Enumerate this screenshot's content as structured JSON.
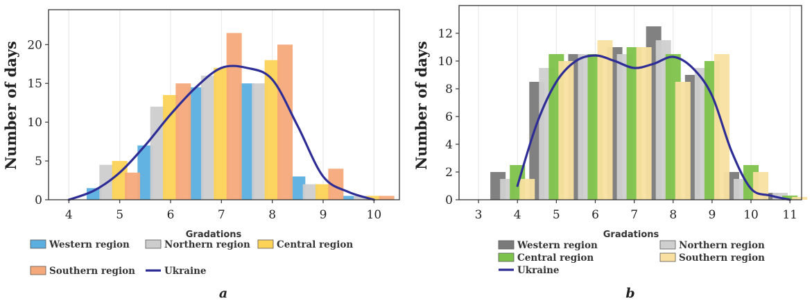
{
  "chart_data": [
    {
      "type": "bar",
      "panel_label": "a",
      "xlabel": "Gradations",
      "ylabel": "Number of days",
      "xlim": [
        3.6,
        10.5
      ],
      "ylim": [
        0,
        24.5
      ],
      "xticks": [
        4,
        5,
        6,
        7,
        8,
        9,
        10
      ],
      "yticks": [
        0,
        5,
        10,
        15,
        20
      ],
      "grid": "vertical",
      "legend_placement": "bottom",
      "series": [
        {
          "name": "Western region",
          "color": "#5aaee0",
          "bars": [
            [
              4.5,
              1.5
            ],
            [
              5.5,
              7.0
            ],
            [
              6.5,
              14.5
            ],
            [
              7.5,
              15.0
            ],
            [
              8.5,
              3.0
            ],
            [
              9.5,
              0.5
            ]
          ]
        },
        {
          "name": "Northern region",
          "color": "#cdcdcd",
          "bars": [
            [
              4.75,
              4.5
            ],
            [
              5.75,
              12.0
            ],
            [
              6.75,
              16.0
            ],
            [
              7.75,
              15.0
            ],
            [
              8.75,
              2.0
            ],
            [
              9.75,
              0.5
            ]
          ]
        },
        {
          "name": "Central region",
          "color": "#fcd257",
          "bars": [
            [
              5.0,
              5.0
            ],
            [
              6.0,
              13.5
            ],
            [
              7.0,
              17.0
            ],
            [
              8.0,
              18.0
            ],
            [
              9.0,
              2.0
            ],
            [
              10.0,
              0.5
            ]
          ]
        },
        {
          "name": "Southern region",
          "color": "#f5a97a",
          "bars": [
            [
              5.25,
              3.5
            ],
            [
              6.25,
              15.0
            ],
            [
              7.25,
              21.5
            ],
            [
              8.25,
              20.0
            ],
            [
              9.25,
              4.0
            ],
            [
              10.25,
              0.5
            ]
          ]
        }
      ],
      "line": {
        "name": "Ukraine",
        "color": "#2e2d96",
        "x": [
          4.0,
          4.5,
          5.0,
          5.5,
          6.0,
          6.5,
          7.0,
          7.5,
          8.0,
          8.5,
          9.0,
          9.5,
          10.0
        ],
        "y": [
          0.0,
          1.2,
          3.5,
          7.0,
          11.0,
          14.5,
          17.0,
          17.0,
          15.5,
          9.5,
          3.0,
          1.0,
          0.0
        ]
      },
      "legend": [
        "Western region",
        "Northern region",
        "Central region",
        "Southern region",
        "Ukraine"
      ]
    },
    {
      "type": "bar",
      "panel_label": "b",
      "xlabel": "Gradations",
      "ylabel": "Number of days",
      "xlim": [
        2.5,
        11.3
      ],
      "ylim": [
        0,
        14
      ],
      "xticks": [
        3,
        4,
        5,
        6,
        7,
        8,
        9,
        10,
        11
      ],
      "yticks": [
        0,
        2,
        4,
        6,
        8,
        10,
        12
      ],
      "grid": "vertical",
      "legend_placement": "bottom",
      "series": [
        {
          "name": "Western region",
          "color": "#7a7a7a",
          "bars": [
            [
              3.5,
              2.0
            ],
            [
              4.5,
              8.5
            ],
            [
              5.5,
              10.5
            ],
            [
              6.5,
              11.0
            ],
            [
              7.5,
              12.5
            ],
            [
              8.5,
              9.0
            ],
            [
              9.5,
              2.0
            ],
            [
              10.5,
              0.5
            ]
          ]
        },
        {
          "name": "Northern region",
          "color": "#cfcfcf",
          "bars": [
            [
              3.75,
              1.5
            ],
            [
              4.75,
              9.5
            ],
            [
              5.75,
              10.5
            ],
            [
              6.75,
              10.5
            ],
            [
              7.75,
              11.5
            ],
            [
              8.75,
              9.5
            ],
            [
              9.75,
              1.5
            ],
            [
              10.75,
              0.5
            ]
          ]
        },
        {
          "name": "Central region",
          "color": "#7dc24b",
          "bars": [
            [
              4.0,
              2.5
            ],
            [
              5.0,
              10.5
            ],
            [
              6.0,
              10.5
            ],
            [
              7.0,
              11.0
            ],
            [
              8.0,
              10.5
            ],
            [
              9.0,
              10.0
            ],
            [
              10.0,
              2.5
            ],
            [
              11.0,
              0.3
            ]
          ]
        },
        {
          "name": "Southern region",
          "color": "#f9e0a0",
          "bars": [
            [
              4.25,
              1.5
            ],
            [
              5.25,
              10.0
            ],
            [
              6.25,
              11.5
            ],
            [
              7.25,
              11.0
            ],
            [
              8.25,
              8.5
            ],
            [
              9.25,
              10.5
            ],
            [
              10.25,
              2.0
            ],
            [
              11.25,
              0.2
            ]
          ]
        }
      ],
      "line": {
        "name": "Ukraine",
        "color": "#2e2d96",
        "x": [
          4.0,
          4.5,
          5.0,
          5.5,
          6.0,
          6.5,
          7.0,
          7.5,
          8.0,
          8.5,
          9.0,
          9.5,
          10.0,
          10.5,
          11.0
        ],
        "y": [
          1.0,
          5.5,
          8.5,
          10.0,
          10.4,
          10.0,
          9.5,
          9.8,
          10.3,
          9.5,
          7.5,
          3.5,
          0.8,
          0.3,
          0.0
        ]
      },
      "legend": [
        "Western region",
        "Northern region",
        "Central region",
        "Southern region",
        "Ukraine"
      ]
    }
  ]
}
